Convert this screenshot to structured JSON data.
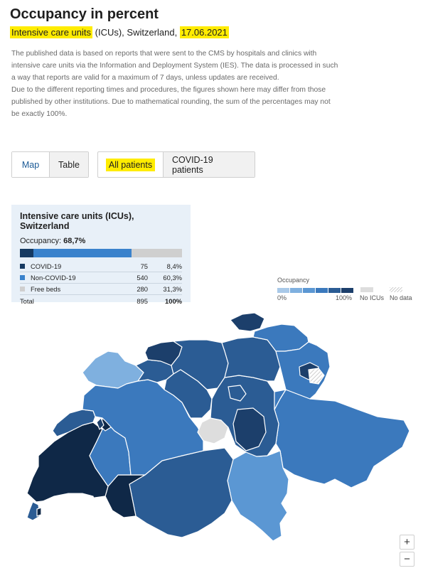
{
  "title": "Occupancy in percent",
  "subtitle": {
    "part1": "Intensive care units",
    "part2": " (ICUs), Switzerland, ",
    "date": "17.06.2021"
  },
  "description": {
    "p1": "The published data is based on reports that were sent to the CMS by hospitals and clinics with intensive care units via the Information and Deployment System (IES). The data is processed in such a way that reports are valid for a maximum of 7 days, unless updates are received.",
    "p2": "Due to the different reporting times and procedures, the figures shown here may differ from those published by other institutions. Due to mathematical rounding, the sum of the percentages may not be exactly 100%."
  },
  "view_toggle": {
    "map": "Map",
    "table": "Table"
  },
  "patient_toggle": {
    "all": "All patients",
    "covid": "COVID-19 patients"
  },
  "summary": {
    "title": "Intensive care units (ICUs), Switzerland",
    "occupancy_label": "Occupancy: ",
    "occupancy_value": "68,7%",
    "bar": {
      "covid": 8.4,
      "noncovid": 60.3,
      "free": 31.3
    },
    "rows": [
      {
        "label": "COVID-19",
        "count": "75",
        "pct": "8,4%"
      },
      {
        "label": "Non-COVID-19",
        "count": "540",
        "pct": "60,3%"
      },
      {
        "label": "Free beds",
        "count": "280",
        "pct": "31,3%"
      }
    ],
    "total": {
      "label": "Total",
      "count": "895",
      "pct": "100%"
    }
  },
  "legend": {
    "title": "Occupancy",
    "min": "0%",
    "max": "100%",
    "no_icus": "No ICUs",
    "no_data": "No data"
  },
  "colors": {
    "scale": [
      "#a9c9e8",
      "#7fb0df",
      "#5b97d3",
      "#3b79bd",
      "#2b5c94",
      "#1c3f6b",
      "#0f2847"
    ],
    "covid": "#163a62",
    "noncovid": "#3a82cc",
    "free": "#cfcfcf",
    "no_icus": "#dddddd",
    "highlight": "#ffec00"
  },
  "zoom": {
    "in": "+",
    "out": "−"
  }
}
